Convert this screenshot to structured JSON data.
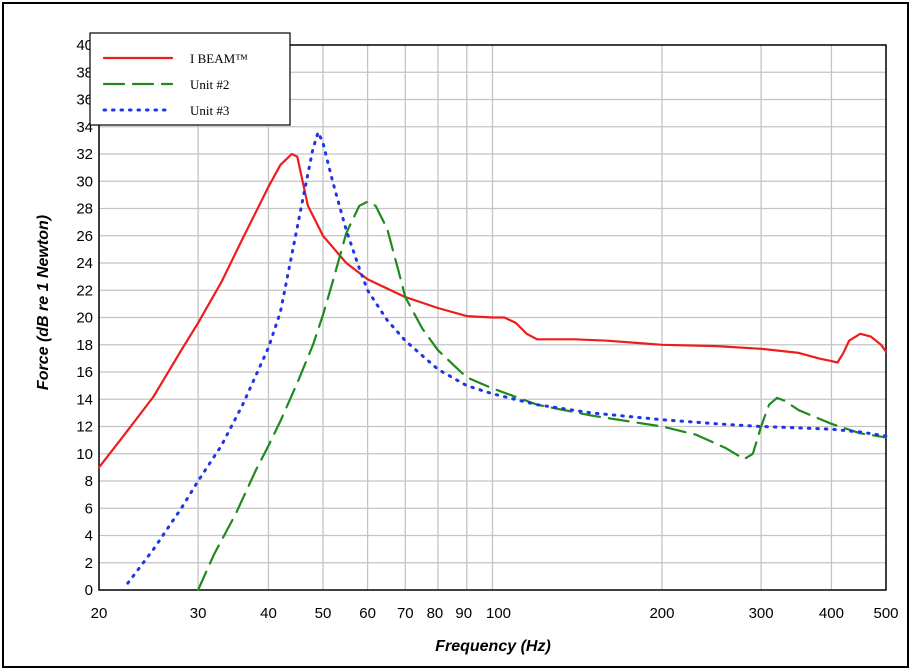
{
  "chart_data": {
    "type": "line",
    "title": "",
    "xlabel": "Frequency (Hz)",
    "ylabel": "Force (dB re 1 Newton)",
    "xscale": "log",
    "xlim": [
      20,
      500
    ],
    "ylim": [
      0,
      40
    ],
    "grid": true,
    "legend_position": "top-left",
    "x_ticks": [
      {
        "value": 20,
        "label": "20"
      },
      {
        "value": 30,
        "label": "30"
      },
      {
        "value": 40,
        "label": "40"
      },
      {
        "value": 50,
        "label": "50"
      },
      {
        "value": 60,
        "label": "60"
      },
      {
        "value": 70,
        "label": "70"
      },
      {
        "value": 80,
        "label": "80"
      },
      {
        "value": 90,
        "label": "90"
      },
      {
        "value": 100,
        "label": "100"
      },
      {
        "value": 200,
        "label": "200"
      },
      {
        "value": 300,
        "label": "300"
      },
      {
        "value": 400,
        "label": "400"
      },
      {
        "value": 500,
        "label": "500"
      }
    ],
    "y_ticks": [
      0,
      2,
      4,
      6,
      8,
      10,
      12,
      14,
      16,
      18,
      20,
      22,
      24,
      26,
      28,
      30,
      32,
      34,
      36,
      38,
      40
    ],
    "series": [
      {
        "name": "I BEAM™",
        "color": "#ee1c1c",
        "dash": "solid",
        "points": [
          [
            20,
            9
          ],
          [
            22,
            11.2
          ],
          [
            25,
            14.2
          ],
          [
            28,
            17.6
          ],
          [
            30,
            19.6
          ],
          [
            33,
            22.6
          ],
          [
            36,
            25.8
          ],
          [
            40,
            29.6
          ],
          [
            42,
            31.2
          ],
          [
            44,
            32.0
          ],
          [
            45,
            31.8
          ],
          [
            46,
            30.0
          ],
          [
            47,
            28.2
          ],
          [
            50,
            26.0
          ],
          [
            55,
            24.0
          ],
          [
            60,
            22.8
          ],
          [
            70,
            21.5
          ],
          [
            80,
            20.7
          ],
          [
            90,
            20.1
          ],
          [
            100,
            20.0
          ],
          [
            105,
            20.0
          ],
          [
            110,
            19.6
          ],
          [
            115,
            18.8
          ],
          [
            120,
            18.4
          ],
          [
            140,
            18.4
          ],
          [
            160,
            18.3
          ],
          [
            200,
            18.0
          ],
          [
            250,
            17.9
          ],
          [
            300,
            17.7
          ],
          [
            350,
            17.4
          ],
          [
            380,
            17.0
          ],
          [
            400,
            16.8
          ],
          [
            410,
            16.7
          ],
          [
            420,
            17.4
          ],
          [
            430,
            18.3
          ],
          [
            450,
            18.8
          ],
          [
            470,
            18.6
          ],
          [
            490,
            18.0
          ],
          [
            500,
            17.5
          ]
        ]
      },
      {
        "name": "Unit #2",
        "color": "#1f8a1f",
        "dash": "long-dash",
        "points": [
          [
            30,
            0
          ],
          [
            32,
            2.6
          ],
          [
            35,
            5.6
          ],
          [
            38,
            8.8
          ],
          [
            40,
            10.6
          ],
          [
            42,
            12.4
          ],
          [
            45,
            15.2
          ],
          [
            48,
            18.0
          ],
          [
            50,
            20.2
          ],
          [
            52,
            22.6
          ],
          [
            55,
            26.2
          ],
          [
            58,
            28.2
          ],
          [
            60,
            28.5
          ],
          [
            62,
            28.2
          ],
          [
            65,
            26.5
          ],
          [
            68,
            23.5
          ],
          [
            70,
            21.5
          ],
          [
            75,
            19.2
          ],
          [
            80,
            17.6
          ],
          [
            90,
            15.6
          ],
          [
            100,
            14.8
          ],
          [
            120,
            13.6
          ],
          [
            150,
            12.8
          ],
          [
            200,
            12.0
          ],
          [
            230,
            11.4
          ],
          [
            260,
            10.4
          ],
          [
            280,
            9.6
          ],
          [
            290,
            10.0
          ],
          [
            295,
            11.0
          ],
          [
            300,
            12.0
          ],
          [
            310,
            13.6
          ],
          [
            320,
            14.1
          ],
          [
            330,
            13.9
          ],
          [
            350,
            13.2
          ],
          [
            400,
            12.2
          ],
          [
            450,
            11.5
          ],
          [
            500,
            11.2
          ]
        ]
      },
      {
        "name": "Unit #3",
        "color": "#1e35e8",
        "dash": "dotted",
        "points": [
          [
            22.5,
            0.5
          ],
          [
            25,
            3.0
          ],
          [
            28,
            6.0
          ],
          [
            30,
            8.0
          ],
          [
            33,
            10.6
          ],
          [
            36,
            13.6
          ],
          [
            40,
            17.8
          ],
          [
            42,
            20.4
          ],
          [
            44,
            24.6
          ],
          [
            46,
            28.6
          ],
          [
            48,
            32.4
          ],
          [
            49,
            33.6
          ],
          [
            50,
            32.8
          ],
          [
            52,
            30.0
          ],
          [
            55,
            26.4
          ],
          [
            58,
            23.6
          ],
          [
            60,
            22.0
          ],
          [
            65,
            19.8
          ],
          [
            70,
            18.3
          ],
          [
            80,
            16.2
          ],
          [
            90,
            15.0
          ],
          [
            100,
            14.4
          ],
          [
            120,
            13.6
          ],
          [
            150,
            13.0
          ],
          [
            200,
            12.5
          ],
          [
            250,
            12.2
          ],
          [
            300,
            12.0
          ],
          [
            350,
            11.9
          ],
          [
            400,
            11.8
          ],
          [
            450,
            11.6
          ],
          [
            500,
            11.3
          ]
        ]
      }
    ]
  }
}
